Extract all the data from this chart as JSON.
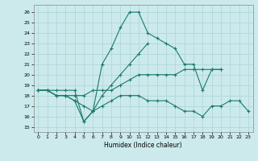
{
  "xlabel": "Humidex (Indice chaleur)",
  "background_color": "#cceaec",
  "line_color": "#1a7a6e",
  "grid_color": "#afd8da",
  "xlim": [
    -0.5,
    23.5
  ],
  "ylim": [
    14.5,
    26.7
  ],
  "yticks": [
    15,
    16,
    17,
    18,
    19,
    20,
    21,
    22,
    23,
    24,
    25,
    26
  ],
  "xticks": [
    0,
    1,
    2,
    3,
    4,
    5,
    6,
    7,
    8,
    9,
    10,
    11,
    12,
    13,
    14,
    15,
    16,
    17,
    18,
    19,
    20,
    21,
    22,
    23
  ],
  "lines": [
    {
      "x": [
        0,
        1,
        2,
        3,
        4,
        5,
        6,
        7,
        8,
        9,
        10,
        11,
        12,
        13,
        14,
        15,
        16,
        17,
        18,
        19,
        20
      ],
      "y": [
        18.5,
        18.5,
        18.5,
        18.5,
        18.5,
        15.5,
        16.5,
        21.0,
        22.5,
        24.5,
        26.0,
        26.0,
        24.0,
        23.5,
        23.0,
        22.5,
        21.0,
        21.0,
        18.5,
        20.5,
        20.5
      ]
    },
    {
      "x": [
        0,
        1,
        2,
        3,
        4,
        5,
        6,
        7,
        8,
        9,
        10,
        11,
        12,
        13,
        14,
        15,
        16,
        17,
        18,
        19,
        20
      ],
      "y": [
        18.5,
        18.5,
        18.0,
        18.0,
        18.0,
        18.0,
        18.5,
        18.5,
        18.5,
        19.0,
        19.5,
        20.0,
        20.0,
        20.0,
        20.0,
        20.0,
        20.5,
        20.5,
        20.5,
        20.5,
        20.5
      ]
    },
    {
      "x": [
        0,
        1,
        2,
        3,
        4,
        5,
        6,
        7,
        8,
        9,
        10,
        11,
        12,
        13,
        14,
        15,
        16,
        17,
        18,
        19,
        20,
        21,
        22,
        23
      ],
      "y": [
        18.5,
        18.5,
        18.0,
        18.0,
        17.5,
        15.5,
        16.5,
        17.0,
        17.5,
        18.0,
        18.0,
        18.0,
        17.5,
        17.5,
        17.5,
        17.0,
        16.5,
        16.5,
        16.0,
        17.0,
        17.0,
        17.5,
        17.5,
        16.5
      ]
    },
    {
      "x": [
        0,
        1,
        2,
        3,
        4,
        5,
        6,
        7,
        8,
        9,
        10,
        11,
        12
      ],
      "y": [
        18.5,
        18.5,
        18.0,
        18.0,
        17.5,
        17.0,
        16.5,
        18.0,
        19.0,
        20.0,
        21.0,
        22.0,
        23.0
      ]
    }
  ]
}
